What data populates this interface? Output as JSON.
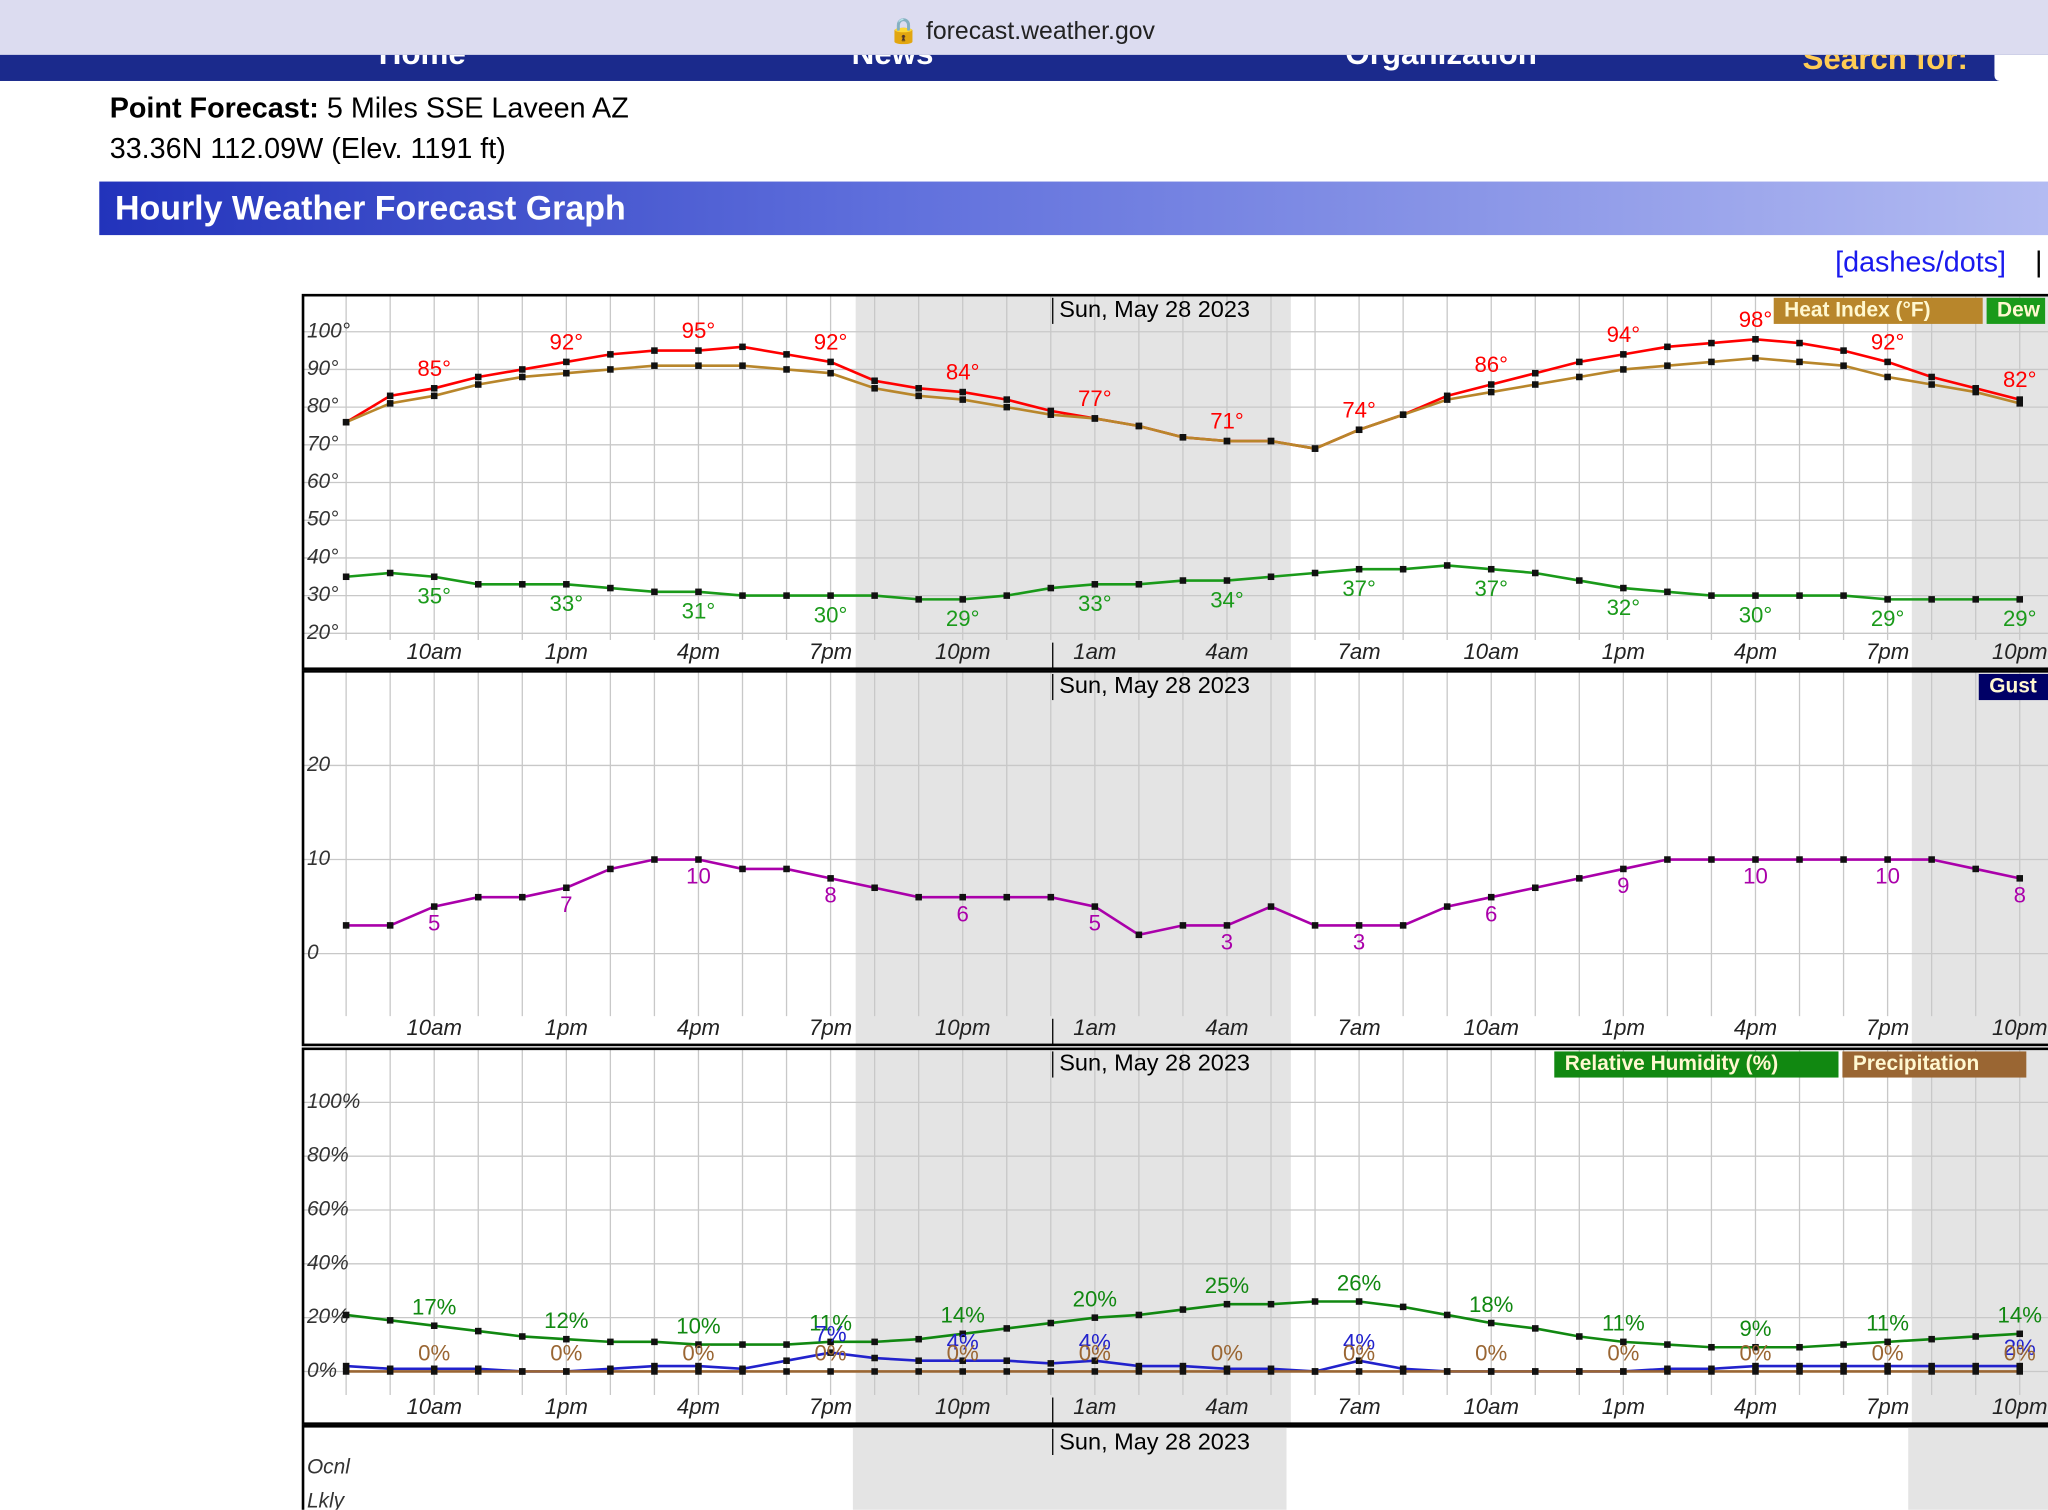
{
  "browser": {
    "url": "forecast.weather.gov"
  },
  "nav": [
    "Home",
    "News",
    "Organization",
    "Search for:"
  ],
  "header": {
    "label": "Point Forecast:",
    "place": "5 Miles SSE Laveen AZ",
    "coords": "33.36N 112.09W (Elev. 1191 ft)"
  },
  "title": "Hourly Weather Forecast Graph",
  "links": [
    "[dashes/dots]",
    "|"
  ],
  "chart_data": [
    {
      "type": "line",
      "date": "Sun, May 28 2023",
      "categories": [
        null,
        null,
        "10am",
        null,
        null,
        "1pm",
        null,
        null,
        "4pm",
        null,
        null,
        "7pm",
        null,
        null,
        "10pm",
        null,
        null,
        "1am",
        null,
        null,
        "4am",
        null,
        null,
        "7am",
        null,
        null,
        "10am",
        null,
        null,
        "1pm",
        null,
        null,
        "4pm",
        null,
        null,
        "7pm",
        null,
        null,
        "10pm"
      ],
      "ylim": [
        10.6,
        109.7
      ],
      "yticks": [
        {
          "value": 100,
          "label": "100°"
        },
        {
          "value": 90,
          "label": "90°"
        },
        {
          "value": 80,
          "label": "80°"
        },
        {
          "value": 70,
          "label": "70°"
        },
        {
          "value": 60,
          "label": "60°"
        },
        {
          "value": 50,
          "label": "50°"
        },
        {
          "value": 40,
          "label": "40°"
        },
        {
          "value": 30,
          "label": "30°"
        },
        {
          "value": 20,
          "label": "20°"
        }
      ],
      "grid": true,
      "series": [
        {
          "color": "#ff0000",
          "values": [
            76,
            83,
            85,
            88,
            90,
            92,
            94,
            95,
            95,
            96,
            94,
            92,
            87,
            85,
            84,
            82,
            79,
            77,
            75,
            72,
            71,
            71,
            69,
            74,
            78,
            83,
            86,
            89,
            92,
            94,
            96,
            97,
            98,
            97,
            95,
            92,
            88,
            85,
            82
          ],
          "value_labels": [
            null,
            null,
            "85°",
            null,
            null,
            "92°",
            null,
            null,
            "95°",
            null,
            null,
            "92°",
            null,
            null,
            "84°",
            null,
            null,
            "77°",
            null,
            null,
            "71°",
            null,
            null,
            "74°",
            null,
            null,
            "86°",
            null,
            null,
            "94°",
            null,
            null,
            "98°",
            null,
            null,
            "92°",
            null,
            null,
            "82°"
          ]
        },
        {
          "name": "Heat Index (°F)",
          "color": "#b8862b",
          "values": [
            76,
            81,
            83,
            86,
            88,
            89,
            90,
            91,
            91,
            91,
            90,
            89,
            85,
            83,
            82,
            80,
            78,
            77,
            75,
            72,
            71,
            71,
            69,
            74,
            78,
            82,
            84,
            86,
            88,
            90,
            91,
            92,
            93,
            92,
            91,
            88,
            86,
            84,
            81
          ]
        },
        {
          "name": "Dew",
          "color": "#1a9a1a",
          "values": [
            35,
            36,
            35,
            33,
            33,
            33,
            32,
            31,
            31,
            30,
            30,
            30,
            30,
            29,
            29,
            30,
            32,
            33,
            33,
            34,
            34,
            35,
            36,
            37,
            37,
            38,
            37,
            36,
            34,
            32,
            31,
            30,
            30,
            30,
            30,
            29,
            29,
            29,
            29
          ],
          "value_labels": [
            null,
            null,
            "35°",
            null,
            null,
            "33°",
            null,
            null,
            "31°",
            null,
            null,
            "30°",
            null,
            null,
            "29°",
            null,
            null,
            "33°",
            null,
            null,
            "34°",
            null,
            null,
            "37°",
            null,
            null,
            "37°",
            null,
            null,
            "32°",
            null,
            null,
            "30°",
            null,
            null,
            "29°",
            null,
            null,
            "29°"
          ]
        }
      ]
    },
    {
      "type": "line",
      "date": "Sun, May 28 2023",
      "categories": [
        null,
        null,
        "10am",
        null,
        null,
        "1pm",
        null,
        null,
        "4pm",
        null,
        null,
        "7pm",
        null,
        null,
        "10pm",
        null,
        null,
        "1am",
        null,
        null,
        "4am",
        null,
        null,
        "7am",
        null,
        null,
        "10am",
        null,
        null,
        "1pm",
        null,
        null,
        "4pm",
        null,
        null,
        "7pm",
        null,
        null,
        "10pm"
      ],
      "ylim": [
        -9.7,
        30
      ],
      "yticks": [
        0,
        10,
        20
      ],
      "grid": true,
      "legend": [
        {
          "name": "Gust",
          "color": "#000066"
        }
      ],
      "series": [
        {
          "color": "#aa00aa",
          "values": [
            3,
            3,
            5,
            6,
            6,
            7,
            9,
            10,
            10,
            9,
            9,
            8,
            7,
            6,
            6,
            6,
            6,
            5,
            2,
            3,
            3,
            5,
            3,
            3,
            3,
            5,
            6,
            7,
            8,
            9,
            10,
            10,
            10,
            10,
            10,
            10,
            10,
            9,
            8
          ],
          "value_labels": [
            null,
            null,
            "5",
            null,
            null,
            "7",
            null,
            null,
            "10",
            null,
            null,
            "8",
            null,
            null,
            "6",
            null,
            null,
            "5",
            null,
            null,
            "3",
            null,
            null,
            "3",
            null,
            null,
            "6",
            null,
            null,
            "9",
            null,
            null,
            "10",
            null,
            null,
            "10",
            null,
            null,
            "8"
          ]
        }
      ]
    },
    {
      "type": "line",
      "date": "Sun, May 28 2023",
      "categories": [
        null,
        null,
        "10am",
        null,
        null,
        "1pm",
        null,
        null,
        "4pm",
        null,
        null,
        "7pm",
        null,
        null,
        "10pm",
        null,
        null,
        "1am",
        null,
        null,
        "4am",
        null,
        null,
        "7am",
        null,
        null,
        "10am",
        null,
        null,
        "1pm",
        null,
        null,
        "4pm",
        null,
        null,
        "7pm",
        null,
        null,
        "10pm"
      ],
      "ylim": [
        -19.4,
        119.9
      ],
      "yticks": [
        {
          "value": 100,
          "label": "100%"
        },
        {
          "value": 80,
          "label": "80%"
        },
        {
          "value": 60,
          "label": "60%"
        },
        {
          "value": 40,
          "label": "40%"
        },
        {
          "value": 20,
          "label": "20%"
        },
        {
          "value": 0,
          "label": "0%"
        }
      ],
      "grid": true,
      "series": [
        {
          "name": "Relative Humidity (%)",
          "color": "#118811",
          "values": [
            21,
            19,
            17,
            15,
            13,
            12,
            11,
            11,
            10,
            10,
            10,
            11,
            11,
            12,
            14,
            16,
            18,
            20,
            21,
            23,
            25,
            25,
            26,
            26,
            24,
            21,
            18,
            16,
            13,
            11,
            10,
            9,
            9,
            9,
            10,
            11,
            12,
            13,
            14
          ],
          "value_labels": [
            null,
            null,
            "17%",
            null,
            null,
            "12%",
            null,
            null,
            "10%",
            null,
            null,
            "11%",
            null,
            null,
            "14%",
            null,
            null,
            "20%",
            null,
            null,
            "25%",
            null,
            null,
            "26%",
            null,
            null,
            "18%",
            null,
            null,
            "11%",
            null,
            null,
            "9%",
            null,
            null,
            "11%",
            null,
            null,
            "14%"
          ]
        },
        {
          "color": "#2222cc",
          "values": [
            2,
            1,
            1,
            1,
            0,
            0,
            1,
            2,
            2,
            1,
            4,
            7,
            5,
            4,
            4,
            4,
            3,
            4,
            2,
            2,
            1,
            1,
            0,
            4,
            1,
            0,
            0,
            0,
            0,
            0,
            1,
            1,
            2,
            2,
            2,
            2,
            2,
            2,
            2
          ],
          "value_labels": [
            null,
            null,
            null,
            null,
            null,
            null,
            null,
            null,
            null,
            null,
            null,
            "7%",
            null,
            null,
            "4%",
            null,
            null,
            "4%",
            null,
            null,
            null,
            null,
            null,
            "4%",
            null,
            null,
            null,
            null,
            null,
            null,
            null,
            null,
            null,
            null,
            null,
            null,
            null,
            null,
            "2%"
          ]
        },
        {
          "name": "Precipitation",
          "color": "#9a6633",
          "values": [
            0,
            0,
            0,
            0,
            0,
            0,
            0,
            0,
            0,
            0,
            0,
            0,
            0,
            0,
            0,
            0,
            0,
            0,
            0,
            0,
            0,
            0,
            0,
            0,
            0,
            0,
            0,
            0,
            0,
            0,
            0,
            0,
            0,
            0,
            0,
            0,
            0,
            0,
            0
          ],
          "value_labels": [
            null,
            null,
            "0%",
            null,
            null,
            "0%",
            null,
            null,
            "0%",
            null,
            null,
            "0%",
            null,
            null,
            "0%",
            null,
            null,
            "0%",
            null,
            null,
            "0%",
            null,
            null,
            "0%",
            null,
            null,
            "0%",
            null,
            null,
            "0%",
            null,
            null,
            "0%",
            null,
            null,
            "0%",
            null,
            null,
            "0%"
          ]
        }
      ]
    }
  ],
  "conditions": {
    "date": "Sun, May 28 2023",
    "rows": [
      "Ocnl",
      "Lkly"
    ]
  }
}
